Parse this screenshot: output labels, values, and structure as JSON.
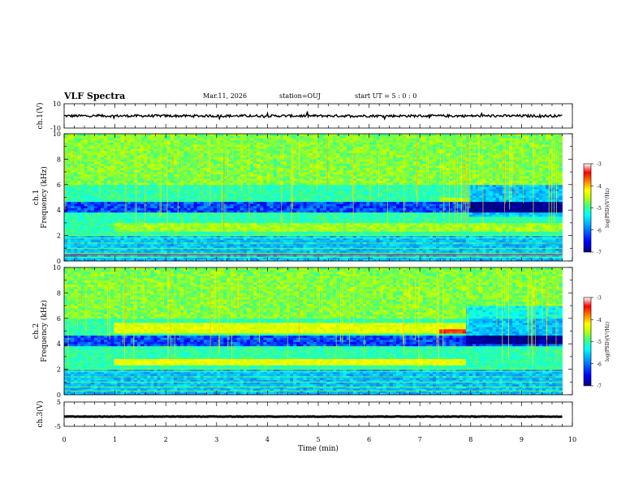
{
  "header": {
    "title": "VLF Spectra",
    "date": "Mar.11, 2026",
    "station": "station=OUJ",
    "start": "start UT =  5 : 0 : 0"
  },
  "chart_data": [
    {
      "type": "line",
      "ylabel": "ch.1(V)",
      "yticks": [
        "10",
        "-10"
      ],
      "ylim": [
        -10,
        10
      ],
      "xlim": [
        0,
        10
      ],
      "trace_level": 0,
      "trace_range": [
        -1,
        1
      ],
      "trace_end": 9.8,
      "color": "#000000"
    },
    {
      "type": "heatmap",
      "ylabel": "ch.1\nFrequency (kHz)",
      "yticks": [
        "0",
        "2",
        "4",
        "6",
        "8",
        "10"
      ],
      "ylim": [
        0,
        10
      ],
      "xlim": [
        0,
        10
      ],
      "data_end_min": 9.8,
      "colorbar": {
        "label": "log(PSD)(V²/Hz)",
        "ticks": [
          "-3",
          "-4",
          "-5",
          "-6",
          "-7"
        ],
        "range": [
          -7,
          -3
        ],
        "colors": [
          "#000080",
          "#0000ff",
          "#00a0ff",
          "#00ffff",
          "#40ff80",
          "#c0ff00",
          "#ffff00",
          "#ff8000",
          "#ff0000",
          "#ffffff"
        ]
      }
    },
    {
      "type": "heatmap",
      "ylabel": "ch.2\nFrequency (kHz)",
      "yticks": [
        "0",
        "2",
        "4",
        "6",
        "8",
        "10"
      ],
      "ylim": [
        0,
        10
      ],
      "xlim": [
        0,
        10
      ],
      "data_end_min": 9.8,
      "colorbar": {
        "label": "log(PSD)(V²/Hz)",
        "ticks": [
          "-3",
          "-4",
          "-5",
          "-6",
          "-7"
        ],
        "range": [
          -7,
          -3
        ],
        "colors": [
          "#000080",
          "#0000ff",
          "#00a0ff",
          "#00ffff",
          "#40ff80",
          "#c0ff00",
          "#ffff00",
          "#ff8000",
          "#ff0000",
          "#ffffff"
        ]
      }
    },
    {
      "type": "line",
      "ylabel": "ch.3(V)",
      "yticks": [
        "5",
        "-5"
      ],
      "ylim": [
        -5,
        5
      ],
      "xlim": [
        0,
        10
      ],
      "trace_level": -1,
      "trace_range": [
        -1.1,
        -0.9
      ],
      "trace_end": 9.8,
      "color": "#000000"
    }
  ],
  "xaxis": {
    "label": "Time  (min)",
    "ticks": [
      "0",
      "1",
      "2",
      "3",
      "4",
      "5",
      "6",
      "7",
      "8",
      "9",
      "10"
    ],
    "range": [
      0,
      10
    ]
  }
}
